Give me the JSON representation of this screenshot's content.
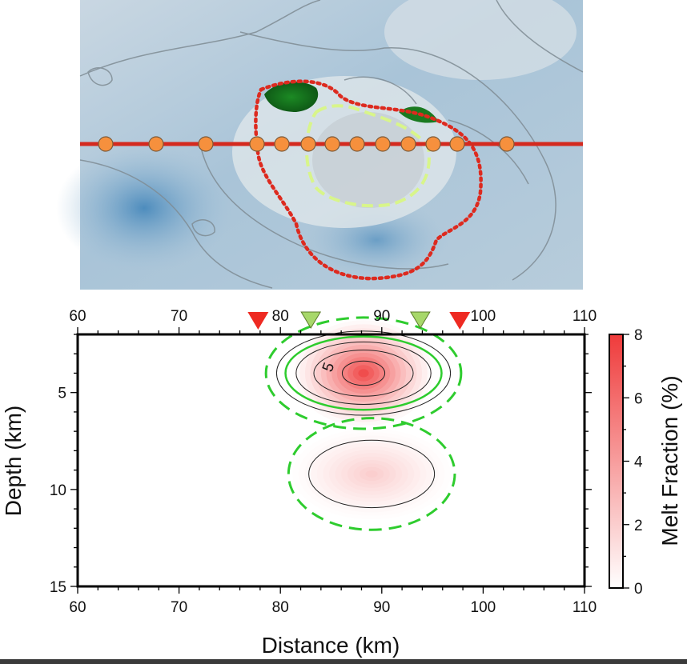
{
  "colors": {
    "profile_line": "#d42a1f",
    "station_fill": "#f6903d",
    "caldera_outline": "#dd2a1f",
    "inner_outline": "#d8f58a",
    "melt_max": "#ef3b3b",
    "contour_green": "#2ecc2e",
    "vent_red": "#ee2a22",
    "vent_green": "#a7d86a"
  },
  "map": {
    "icons": [
      "bathymetry-map",
      "station-marker-icon"
    ],
    "station_count": 13
  },
  "chart_data": {
    "type": "heatmap",
    "xlabel": "Distance (km)",
    "ylabel": "Depth (km)",
    "colorbar_label": "Melt Fraction (%)",
    "xlim": [
      60,
      110
    ],
    "ylim": [
      2,
      15
    ],
    "y_inverted": true,
    "x_ticks": [
      60,
      70,
      80,
      90,
      100,
      110
    ],
    "x_tick_labels": [
      "60",
      "70",
      "80",
      "90",
      "100",
      "110"
    ],
    "y_ticks": [
      5,
      10,
      15
    ],
    "y_tick_labels": [
      "5",
      "10",
      "15"
    ],
    "colorbar_range": [
      0,
      8
    ],
    "colorbar_ticks": [
      0,
      2,
      4,
      6,
      8
    ],
    "colorbar_tick_labels": [
      "0",
      "2",
      "4",
      "6",
      "8"
    ],
    "contour_label": "5",
    "grid": false,
    "vent_markers": [
      {
        "x": 77.8,
        "type": "red"
      },
      {
        "x": 83.0,
        "type": "green"
      },
      {
        "x": 93.8,
        "type": "green"
      },
      {
        "x": 97.7,
        "type": "red"
      }
    ],
    "melt_bodies": [
      {
        "x": 88.2,
        "depth": 4.0,
        "peak": 8.0,
        "sx": 3.5,
        "sy": 1.4
      },
      {
        "x": 89.0,
        "depth": 9.2,
        "peak": 2.2,
        "sx": 4.0,
        "sy": 1.2
      }
    ]
  }
}
